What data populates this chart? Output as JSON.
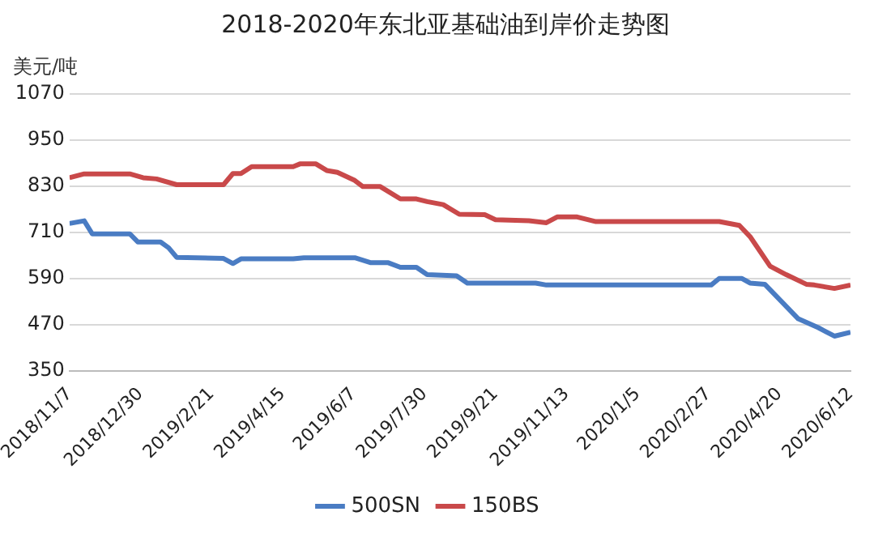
{
  "chart_data": {
    "type": "line",
    "title": "2018-2020年东北亚基础油到岸价走势图",
    "ylabel": "美元/吨",
    "xlim": [
      "2018-11-07",
      "2020-06-12"
    ],
    "xticks": [
      {
        "value": "2018-11-07",
        "label": "2018/11/7"
      },
      {
        "value": "2018-12-30",
        "label": "2018/12/30"
      },
      {
        "value": "2019-02-21",
        "label": "2019/2/21"
      },
      {
        "value": "2019-04-15",
        "label": "2019/4/15"
      },
      {
        "value": "2019-06-07",
        "label": "2019/6/7"
      },
      {
        "value": "2019-07-30",
        "label": "2019/7/30"
      },
      {
        "value": "2019-09-21",
        "label": "2019/9/21"
      },
      {
        "value": "2019-11-13",
        "label": "2019/11/13"
      },
      {
        "value": "2020-01-05",
        "label": "2020/1/5"
      },
      {
        "value": "2020-02-27",
        "label": "2020/2/27"
      },
      {
        "value": "2020-04-20",
        "label": "2020/4/20"
      },
      {
        "value": "2020-06-12",
        "label": "2020/6/12"
      }
    ],
    "ylim": [
      350,
      1070
    ],
    "yticks": [
      350,
      470,
      590,
      710,
      830,
      950,
      1070
    ],
    "grid": "y",
    "legend": "bottom",
    "marker": "none",
    "line_style": "solid",
    "series": [
      {
        "name": "500SN",
        "color": "#4a7cc3",
        "x": [
          "2018-11-07",
          "2018-11-18",
          "2018-11-24",
          "2018-12-22",
          "2018-12-28",
          "2019-01-14",
          "2019-01-20",
          "2019-01-26",
          "2019-03-02",
          "2019-03-09",
          "2019-03-15",
          "2019-04-23",
          "2019-05-01",
          "2019-06-08",
          "2019-06-20",
          "2019-07-03",
          "2019-07-12",
          "2019-07-24",
          "2019-08-01",
          "2019-08-23",
          "2019-08-31",
          "2019-10-21",
          "2019-10-29",
          "2020-02-29",
          "2020-03-06",
          "2020-03-23",
          "2020-03-29",
          "2020-04-09",
          "2020-04-21",
          "2020-05-04",
          "2020-05-19",
          "2020-05-31",
          "2020-06-12"
        ],
        "values": [
          733,
          740,
          706,
          706,
          685,
          685,
          670,
          645,
          642,
          629,
          641,
          641,
          644,
          644,
          631,
          631,
          619,
          619,
          600,
          597,
          578,
          578,
          573,
          573,
          590,
          590,
          578,
          575,
          532,
          485,
          462,
          440,
          450
        ]
      },
      {
        "name": "150BS",
        "color": "#c9494a",
        "x": [
          "2018-11-07",
          "2018-11-18",
          "2018-12-22",
          "2019-01-01",
          "2019-01-11",
          "2019-01-26",
          "2019-03-02",
          "2019-03-09",
          "2019-03-15",
          "2019-03-23",
          "2019-04-23",
          "2019-04-28",
          "2019-05-10",
          "2019-05-18",
          "2019-05-26",
          "2019-06-08",
          "2019-06-14",
          "2019-06-27",
          "2019-07-12",
          "2019-07-24",
          "2019-08-01",
          "2019-08-13",
          "2019-08-25",
          "2019-09-13",
          "2019-09-21",
          "2019-10-16",
          "2019-10-29",
          "2019-11-06",
          "2019-11-21",
          "2019-12-05",
          "2020-03-06",
          "2020-03-21",
          "2020-03-29",
          "2020-04-13",
          "2020-04-25",
          "2020-05-10",
          "2020-05-16",
          "2020-05-31",
          "2020-06-12"
        ],
        "values": [
          852,
          862,
          862,
          852,
          849,
          834,
          834,
          863,
          863,
          881,
          881,
          888,
          888,
          871,
          866,
          845,
          829,
          829,
          797,
          797,
          790,
          782,
          757,
          756,
          743,
          740,
          735,
          750,
          750,
          738,
          738,
          728,
          699,
          622,
          600,
          575,
          573,
          564,
          573
        ]
      }
    ]
  }
}
